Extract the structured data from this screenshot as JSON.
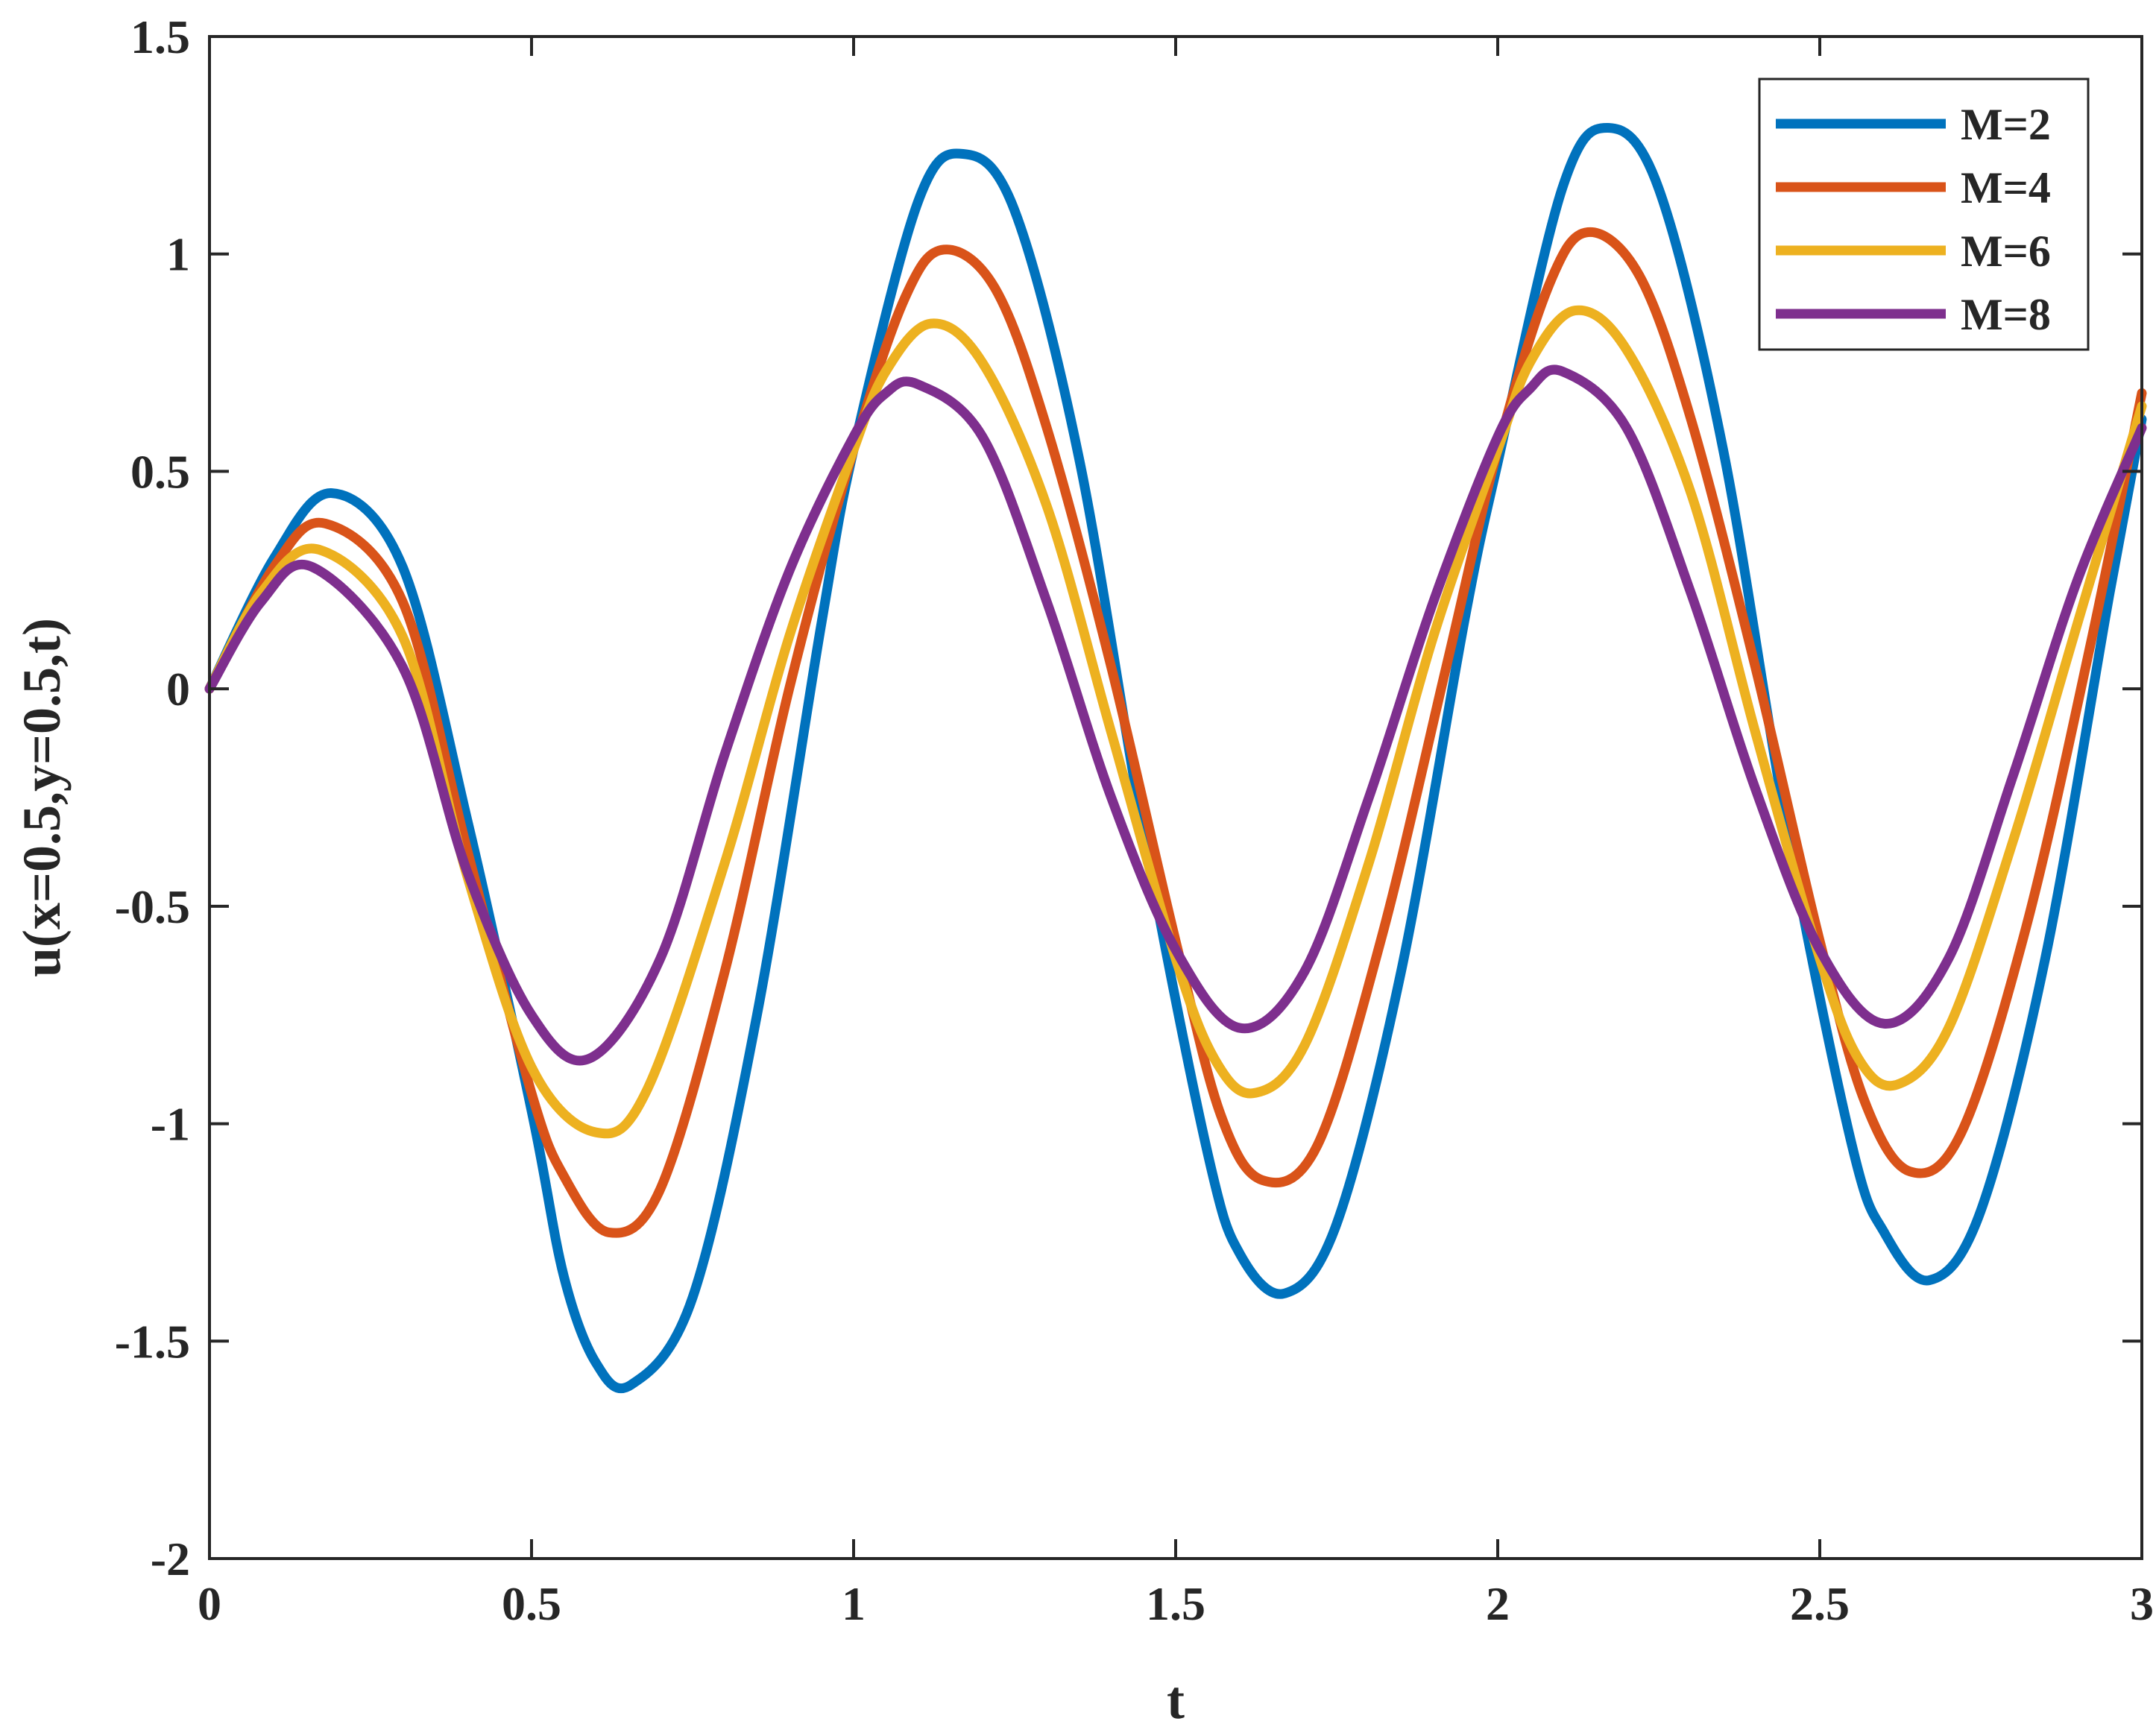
{
  "chart_data": {
    "type": "line",
    "title": "",
    "xlabel": "t",
    "ylabel": "u(x=0.5,y=0.5,t)",
    "xlim": [
      0,
      3
    ],
    "ylim": [
      -2,
      1.5
    ],
    "xticks": [
      0,
      0.5,
      1,
      1.5,
      2,
      2.5,
      3
    ],
    "xtick_labels": [
      "0",
      "0.5",
      "1",
      "1.5",
      "2",
      "2.5",
      "3"
    ],
    "yticks": [
      -2,
      -1.5,
      -1,
      -0.5,
      0,
      0.5,
      1,
      1.5
    ],
    "ytick_labels": [
      "-2",
      "-1.5",
      "-1",
      "-0.5",
      "0",
      "0.5",
      "1",
      "1.5"
    ],
    "grid": false,
    "legend": {
      "position": "top-right"
    },
    "series": [
      {
        "name": "M=2",
        "color": "#0072BD",
        "x": [
          0,
          0.1,
          0.19,
          0.3,
          0.4,
          0.5,
          0.55,
          0.6,
          0.655,
          0.75,
          0.85,
          0.95,
          1.0,
          1.1,
          1.17,
          1.25,
          1.35,
          1.45,
          1.55,
          1.6,
          1.67,
          1.75,
          1.85,
          1.95,
          2.0,
          2.1,
          2.17,
          2.25,
          2.35,
          2.45,
          2.55,
          2.6,
          2.67,
          2.75,
          2.85,
          2.95,
          3.0
        ],
        "y": [
          0,
          0.3,
          0.45,
          0.28,
          -0.3,
          -0.97,
          -1.35,
          -1.55,
          -1.6,
          -1.4,
          -0.75,
          0.15,
          0.55,
          1.12,
          1.23,
          1.1,
          0.53,
          -0.33,
          -1.07,
          -1.3,
          -1.39,
          -1.23,
          -0.65,
          0.17,
          0.52,
          1.15,
          1.29,
          1.15,
          0.55,
          -0.33,
          -1.05,
          -1.25,
          -1.36,
          -1.2,
          -0.62,
          0.22,
          0.62
        ]
      },
      {
        "name": "M=4",
        "color": "#D95319",
        "x": [
          0,
          0.1,
          0.18,
          0.3,
          0.4,
          0.5,
          0.55,
          0.62,
          0.7,
          0.8,
          0.9,
          1.0,
          1.08,
          1.14,
          1.22,
          1.3,
          1.4,
          1.5,
          1.57,
          1.635,
          1.72,
          1.82,
          1.92,
          2.0,
          2.08,
          2.14,
          2.22,
          2.3,
          2.4,
          2.5,
          2.57,
          2.64,
          2.72,
          2.82,
          2.92,
          3.0
        ],
        "y": [
          0,
          0.28,
          0.38,
          0.2,
          -0.37,
          -0.93,
          -1.12,
          -1.25,
          -1.15,
          -0.65,
          0.0,
          0.55,
          0.9,
          1.01,
          0.92,
          0.6,
          0.05,
          -0.58,
          -0.98,
          -1.13,
          -1.05,
          -0.57,
          0.05,
          0.55,
          0.93,
          1.05,
          0.95,
          0.62,
          0.05,
          -0.58,
          -0.95,
          -1.11,
          -1.02,
          -0.55,
          0.1,
          0.68
        ]
      },
      {
        "name": "M=6",
        "color": "#EDB120",
        "x": [
          0,
          0.08,
          0.17,
          0.3,
          0.4,
          0.5,
          0.6,
          0.68,
          0.8,
          0.9,
          1.0,
          1.05,
          1.12,
          1.2,
          1.3,
          1.4,
          1.5,
          1.56,
          1.62,
          1.7,
          1.8,
          1.9,
          2.0,
          2.05,
          2.12,
          2.2,
          2.3,
          2.4,
          2.5,
          2.56,
          2.62,
          2.7,
          2.8,
          2.9,
          3.0
        ],
        "y": [
          0,
          0.22,
          0.32,
          0.12,
          -0.43,
          -0.87,
          -1.02,
          -0.92,
          -0.4,
          0.12,
          0.55,
          0.73,
          0.84,
          0.75,
          0.42,
          -0.1,
          -0.62,
          -0.85,
          -0.93,
          -0.82,
          -0.4,
          0.12,
          0.55,
          0.75,
          0.87,
          0.78,
          0.45,
          -0.1,
          -0.62,
          -0.85,
          -0.91,
          -0.78,
          -0.35,
          0.15,
          0.65
        ]
      },
      {
        "name": "M=8",
        "color": "#7E2F8E",
        "x": [
          0,
          0.08,
          0.16,
          0.3,
          0.4,
          0.5,
          0.59,
          0.7,
          0.8,
          0.9,
          1.0,
          1.05,
          1.1,
          1.2,
          1.3,
          1.4,
          1.5,
          1.6,
          1.7,
          1.8,
          1.9,
          2.0,
          2.05,
          2.1,
          2.2,
          2.3,
          2.4,
          2.5,
          2.6,
          2.7,
          2.8,
          2.9,
          3.0
        ],
        "y": [
          0,
          0.2,
          0.28,
          0.05,
          -0.42,
          -0.75,
          -0.85,
          -0.62,
          -0.15,
          0.27,
          0.58,
          0.68,
          0.7,
          0.58,
          0.2,
          -0.25,
          -0.6,
          -0.78,
          -0.65,
          -0.25,
          0.2,
          0.58,
          0.69,
          0.73,
          0.6,
          0.22,
          -0.23,
          -0.6,
          -0.77,
          -0.62,
          -0.2,
          0.25,
          0.6
        ]
      }
    ]
  }
}
